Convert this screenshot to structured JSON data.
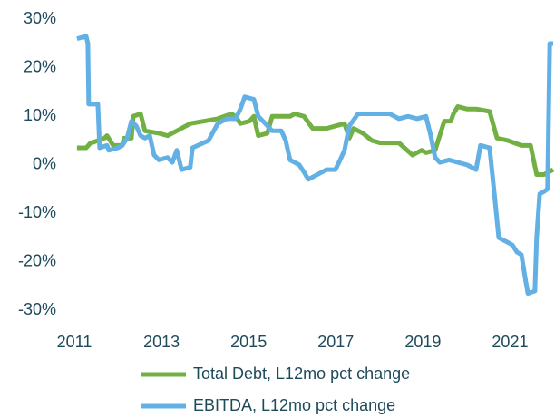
{
  "chart_data": {
    "type": "line",
    "series": [
      {
        "name": "Total Debt, L12mo pct change",
        "color": "#72b043",
        "x": [
          2011.06,
          2011.27,
          2011.37,
          2011.42,
          2011.69,
          2011.75,
          2011.89,
          2012.1,
          2012.14,
          2012.31,
          2012.35,
          2012.52,
          2012.62,
          2012.94,
          2013.14,
          2013.35,
          2013.66,
          2013.98,
          2014.29,
          2014.6,
          2014.7,
          2014.81,
          2015.02,
          2015.12,
          2015.22,
          2015.43,
          2015.54,
          2015.95,
          2016.06,
          2016.27,
          2016.47,
          2016.79,
          2016.99,
          2017.2,
          2017.31,
          2017.41,
          2017.62,
          2017.83,
          2018.03,
          2018.45,
          2018.76,
          2018.97,
          2019.07,
          2019.28,
          2019.49,
          2019.64,
          2019.7,
          2019.8,
          2020.01,
          2020.22,
          2020.53,
          2020.7,
          2020.95,
          2021.26,
          2021.47,
          2021.61,
          2021.78,
          2021.99
        ],
        "values": [
          3.5,
          3.5,
          4.5,
          4.6,
          5.5,
          6,
          4,
          4,
          5.5,
          5.5,
          10,
          10.5,
          7,
          6.5,
          6,
          7,
          8.5,
          9,
          9.5,
          10.5,
          10,
          8.5,
          9,
          10,
          6,
          6.5,
          10,
          10,
          10.5,
          10,
          7.5,
          7.5,
          8,
          8.5,
          5.5,
          7.5,
          6.5,
          5,
          4.5,
          4.5,
          2,
          3,
          2.5,
          3,
          9,
          9,
          10.5,
          12,
          11.5,
          11.5,
          11,
          5.5,
          5,
          4,
          4,
          -2,
          -2,
          -1
        ]
      },
      {
        "name": "EBITDA, L12mo pct change",
        "color": "#62b0e4",
        "x": [
          2011.06,
          2011.27,
          2011.31,
          2011.33,
          2011.54,
          2011.58,
          2011.75,
          2011.79,
          2012.0,
          2012.1,
          2012.21,
          2012.31,
          2012.42,
          2012.52,
          2012.62,
          2012.73,
          2012.83,
          2012.94,
          2013.14,
          2013.25,
          2013.35,
          2013.46,
          2013.66,
          2013.71,
          2014.08,
          2014.29,
          2014.5,
          2014.7,
          2014.81,
          2014.91,
          2015.12,
          2015.22,
          2015.33,
          2015.54,
          2015.75,
          2015.85,
          2015.95,
          2016.16,
          2016.27,
          2016.37,
          2016.58,
          2016.79,
          2016.99,
          2017.1,
          2017.2,
          2017.31,
          2017.51,
          2017.72,
          2018.03,
          2018.24,
          2018.45,
          2018.66,
          2018.87,
          2019.07,
          2019.18,
          2019.28,
          2019.39,
          2019.6,
          2019.8,
          2020.01,
          2020.22,
          2020.32,
          2020.53,
          2020.64,
          2020.74,
          2020.84,
          2020.95,
          2021.05,
          2021.16,
          2021.26,
          2021.36,
          2021.41,
          2021.57,
          2021.61,
          2021.68,
          2021.78,
          2021.86,
          2021.91,
          2021.99
        ],
        "values": [
          26,
          26.5,
          25,
          12.5,
          12.5,
          3.5,
          4,
          3,
          3.5,
          4,
          5.5,
          9,
          8,
          6,
          5.5,
          6,
          2,
          1,
          1.5,
          0.5,
          3,
          -1,
          -0.5,
          3.5,
          5,
          8.5,
          9.5,
          9.5,
          11.5,
          14,
          13.5,
          10,
          9,
          7,
          7,
          5,
          1,
          0,
          -1.5,
          -3,
          -2,
          -1,
          -1,
          1,
          3,
          8,
          10.5,
          10.5,
          10.5,
          10.5,
          9.5,
          10,
          9.5,
          10,
          6,
          1.5,
          0.5,
          1,
          0.5,
          0,
          -1,
          4,
          3.5,
          -6,
          -15,
          -15.5,
          -16,
          -16.5,
          -18,
          -18.5,
          -24,
          -26.5,
          -26,
          -15,
          -6,
          -5.5,
          -5,
          25,
          25
        ]
      }
    ],
    "xlim": [
      2011,
      2022
    ],
    "xticks": [
      2011,
      2013,
      2015,
      2017,
      2019,
      2021
    ],
    "ylim": [
      -32,
      32
    ],
    "yticks": [
      {
        "value": 30,
        "label": "30%"
      },
      {
        "value": 20,
        "label": "20%"
      },
      {
        "value": 10,
        "label": "10%"
      },
      {
        "value": 0,
        "label": "0%"
      },
      {
        "value": -10,
        "label": "-10%"
      },
      {
        "value": -20,
        "label": "-20%"
      },
      {
        "value": -30,
        "label": "-30%"
      }
    ]
  }
}
